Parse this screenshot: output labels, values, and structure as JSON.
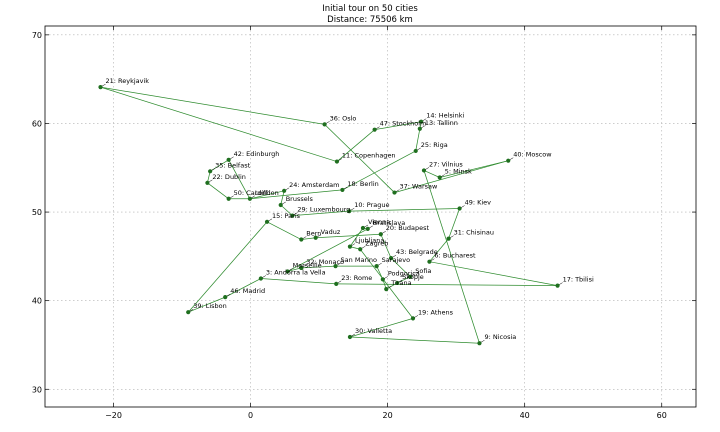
{
  "chart_data": {
    "type": "line",
    "title": "Initial tour on 50 cities",
    "subtitle": "Distance: 75506 km",
    "xlim": [
      -30,
      65
    ],
    "ylim": [
      28,
      71
    ],
    "xticks": [
      -20,
      0,
      20,
      40,
      60
    ],
    "yticks": [
      30,
      40,
      50,
      60,
      70
    ],
    "grid": true,
    "line_color": "#2e8b2e",
    "point_color": "#1f6f1f",
    "cities": [
      {
        "id": 0,
        "name": "Amsterdam",
        "x": 4.9,
        "y": 52.4
      },
      {
        "id": 1,
        "name": "Andorra la Vella",
        "x": 1.5,
        "y": 42.5
      },
      {
        "id": 2,
        "name": "Belgrade",
        "x": 20.5,
        "y": 44.8
      },
      {
        "id": 3,
        "name": "Berlin",
        "x": 13.4,
        "y": 52.5
      },
      {
        "id": 4,
        "name": "Bern",
        "x": 7.4,
        "y": 46.9
      },
      {
        "id": 5,
        "name": "Bratislava",
        "x": 17.1,
        "y": 48.1
      },
      {
        "id": 6,
        "name": "Brussels",
        "x": 4.4,
        "y": 50.8
      },
      {
        "id": 7,
        "name": "Bucharest",
        "x": 26.1,
        "y": 44.4
      },
      {
        "id": 8,
        "name": "Budapest",
        "x": 19.0,
        "y": 47.5
      },
      {
        "id": 9,
        "name": "Cardiff",
        "x": -3.2,
        "y": 51.5
      },
      {
        "id": 10,
        "name": "Chisinau",
        "x": 28.9,
        "y": 47.0
      },
      {
        "id": 11,
        "name": "Copenhagen",
        "x": 12.6,
        "y": 55.7
      },
      {
        "id": 12,
        "name": "Dublin",
        "x": -6.3,
        "y": 53.3
      },
      {
        "id": 13,
        "name": "Edinburgh",
        "x": -3.2,
        "y": 55.9
      },
      {
        "id": 14,
        "name": "Helsinki",
        "x": 24.9,
        "y": 60.2
      },
      {
        "id": 15,
        "name": "Kiev",
        "x": 30.5,
        "y": 50.4
      },
      {
        "id": 16,
        "name": "Lisbon",
        "x": -9.1,
        "y": 38.7
      },
      {
        "id": 17,
        "name": "Ljubljana",
        "x": 14.5,
        "y": 46.1
      },
      {
        "id": 18,
        "name": "London",
        "x": -0.1,
        "y": 51.5
      },
      {
        "id": 19,
        "name": "Luxembourg",
        "x": 6.1,
        "y": 49.6
      },
      {
        "id": 20,
        "name": "Madrid",
        "x": -3.7,
        "y": 40.4
      },
      {
        "id": 21,
        "name": "Minsk",
        "x": 27.6,
        "y": 53.9
      },
      {
        "id": 22,
        "name": "Monaco",
        "x": 7.4,
        "y": 43.7
      },
      {
        "id": 23,
        "name": "Moscow",
        "x": 37.6,
        "y": 55.8
      },
      {
        "id": 24,
        "name": "Nicosia",
        "x": 33.4,
        "y": 35.2
      },
      {
        "id": 25,
        "name": "Oslo",
        "x": 10.8,
        "y": 59.9
      },
      {
        "id": 26,
        "name": "Paris",
        "x": 2.4,
        "y": 48.9
      },
      {
        "id": 27,
        "name": "Podgorica",
        "x": 19.3,
        "y": 42.4
      },
      {
        "id": 28,
        "name": "Prague",
        "x": 14.4,
        "y": 50.1
      },
      {
        "id": 29,
        "name": "Reykjavik",
        "x": -21.9,
        "y": 64.1
      },
      {
        "id": 30,
        "name": "Riga",
        "x": 24.1,
        "y": 56.9
      },
      {
        "id": 31,
        "name": "Rome",
        "x": 12.5,
        "y": 41.9
      },
      {
        "id": 32,
        "name": "San Marino",
        "x": 12.4,
        "y": 43.9
      },
      {
        "id": 33,
        "name": "Sarajevo",
        "x": 18.4,
        "y": 43.9
      },
      {
        "id": 34,
        "name": "Skopje",
        "x": 21.4,
        "y": 42.0
      },
      {
        "id": 35,
        "name": "Sofia",
        "x": 23.3,
        "y": 42.7
      },
      {
        "id": 36,
        "name": "Stockholm",
        "x": 18.1,
        "y": 59.3
      },
      {
        "id": 37,
        "name": "Tallinn",
        "x": 24.7,
        "y": 59.4
      },
      {
        "id": 38,
        "name": "Tirana",
        "x": 19.8,
        "y": 41.3
      },
      {
        "id": 39,
        "name": "Vaduz",
        "x": 9.5,
        "y": 47.1
      },
      {
        "id": 40,
        "name": "Valletta",
        "x": 14.5,
        "y": 35.9
      },
      {
        "id": 41,
        "name": "Vienna",
        "x": 16.4,
        "y": 48.2
      },
      {
        "id": 42,
        "name": "Vilnius",
        "x": 25.3,
        "y": 54.7
      },
      {
        "id": 43,
        "name": "Warsaw",
        "x": 21.0,
        "y": 52.2
      },
      {
        "id": 44,
        "name": "Zagreb",
        "x": 16.0,
        "y": 45.8
      },
      {
        "id": 45,
        "name": "Athens",
        "x": 23.7,
        "y": 38.0
      },
      {
        "id": 46,
        "name": "Tbilisi",
        "x": 44.8,
        "y": 41.7
      },
      {
        "id": 47,
        "name": "Marseille",
        "x": 5.4,
        "y": 43.3
      },
      {
        "id": 48,
        "name": "Belfast",
        "x": -5.9,
        "y": 54.6
      },
      {
        "id": 49,
        "name": "Monaco",
        "x": 7.4,
        "y": 43.7
      }
    ],
    "labels": [
      {
        "text": "21: Reykjavik",
        "city": 29
      },
      {
        "text": "36: Oslo",
        "city": 25
      },
      {
        "text": "47: Stockholm",
        "city": 36
      },
      {
        "text": "14: Helsinki",
        "city": 14
      },
      {
        "text": "13: Tallinn",
        "city": 37
      },
      {
        "text": "42: Edinburgh",
        "city": 13
      },
      {
        "text": "11: Copenhagen",
        "city": 11
      },
      {
        "text": "25: Riga",
        "city": 30
      },
      {
        "text": "40: Moscow",
        "city": 23
      },
      {
        "text": "35: Belfast",
        "city": 48
      },
      {
        "text": "27: Vilnius",
        "city": 42
      },
      {
        "text": "5: Minsk",
        "city": 21
      },
      {
        "text": "22: Dublin",
        "city": 12
      },
      {
        "text": "24: Amsterdam",
        "city": 0
      },
      {
        "text": "18: Berlin",
        "city": 3
      },
      {
        "text": "37: Warsaw",
        "city": 43
      },
      {
        "text": "50: Cardiff",
        "city": 9
      },
      {
        "text": "London",
        "city": 18
      },
      {
        "text": "Brussels",
        "city": 6
      },
      {
        "text": "29: Luxembourg",
        "city": 19
      },
      {
        "text": "10: Prague",
        "city": 28
      },
      {
        "text": "49: Kiev",
        "city": 15
      },
      {
        "text": "15: Paris",
        "city": 26
      },
      {
        "text": "Vienna",
        "city": 41
      },
      {
        "text": "Bratislava",
        "city": 5
      },
      {
        "text": "20: Budapest",
        "city": 8
      },
      {
        "text": "Bern",
        "city": 4
      },
      {
        "text": "Vaduz",
        "city": 39
      },
      {
        "text": "31: Chisinau",
        "city": 10
      },
      {
        "text": "Ljubljana",
        "city": 17
      },
      {
        "text": "Zagreb",
        "city": 44
      },
      {
        "text": "43: Belgrade",
        "city": 2
      },
      {
        "text": "6: Bucharest",
        "city": 7
      },
      {
        "text": "32: Monaco",
        "city": 22
      },
      {
        "text": "San Marino",
        "city": 32
      },
      {
        "text": "Sarajevo",
        "city": 33
      },
      {
        "text": "Marseille",
        "city": 47
      },
      {
        "text": "3: Andorra la Vella",
        "city": 1
      },
      {
        "text": "Podgorica",
        "city": 27
      },
      {
        "text": "Sofia",
        "city": 35
      },
      {
        "text": "Skopje",
        "city": 34
      },
      {
        "text": "23: Rome",
        "city": 31
      },
      {
        "text": "Tirana",
        "city": 38
      },
      {
        "text": "17: Tbilisi",
        "city": 46
      },
      {
        "text": "46: Madrid",
        "city": 20
      },
      {
        "text": "39: Lisbon",
        "city": 16
      },
      {
        "text": "19: Athens",
        "city": 45
      },
      {
        "text": "9: Nicosia",
        "city": 24
      },
      {
        "text": "30: Valletta",
        "city": 40
      }
    ],
    "tour": [
      29,
      11,
      36,
      14,
      37,
      30,
      3,
      18,
      13,
      48,
      12,
      9,
      18,
      0,
      6,
      19,
      28,
      15,
      10,
      7,
      46,
      31,
      1,
      20,
      16,
      26,
      4,
      39,
      8,
      2,
      35,
      34,
      38,
      27,
      33,
      32,
      22,
      47,
      5,
      41,
      17,
      44,
      45,
      40,
      24,
      42,
      21,
      23,
      43,
      25,
      29
    ]
  }
}
